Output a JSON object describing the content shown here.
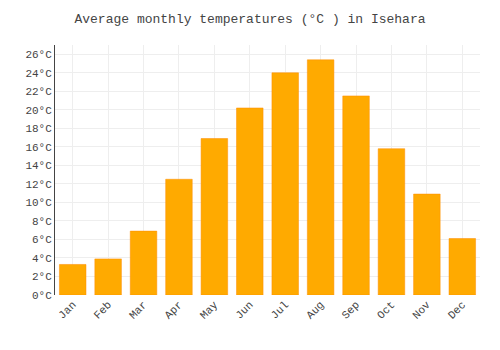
{
  "chart_data": {
    "type": "bar",
    "title": "Average monthly temperatures (°C ) in Isehara",
    "categories": [
      "Jan",
      "Feb",
      "Mar",
      "Apr",
      "May",
      "Jun",
      "Jul",
      "Aug",
      "Sep",
      "Oct",
      "Nov",
      "Dec"
    ],
    "values": [
      3.3,
      3.9,
      6.9,
      12.5,
      16.9,
      20.2,
      24.0,
      25.4,
      21.5,
      15.8,
      10.9,
      6.1
    ],
    "color": "#FFAA00",
    "ylim": [
      0,
      27
    ],
    "yticks": [
      {
        "value": 0,
        "label": "0°C"
      },
      {
        "value": 2,
        "label": "2°C"
      },
      {
        "value": 4,
        "label": "4°C"
      },
      {
        "value": 6,
        "label": "6°C"
      },
      {
        "value": 8,
        "label": "8°C"
      },
      {
        "value": 10,
        "label": "10°C"
      },
      {
        "value": 12,
        "label": "12°C"
      },
      {
        "value": 14,
        "label": "14°C"
      },
      {
        "value": 16,
        "label": "16°C"
      },
      {
        "value": 18,
        "label": "18°C"
      },
      {
        "value": 20,
        "label": "20°C"
      },
      {
        "value": 22,
        "label": "22°C"
      },
      {
        "value": 24,
        "label": "24°C"
      },
      {
        "value": 26,
        "label": "26°C"
      }
    ],
    "grid": true
  }
}
